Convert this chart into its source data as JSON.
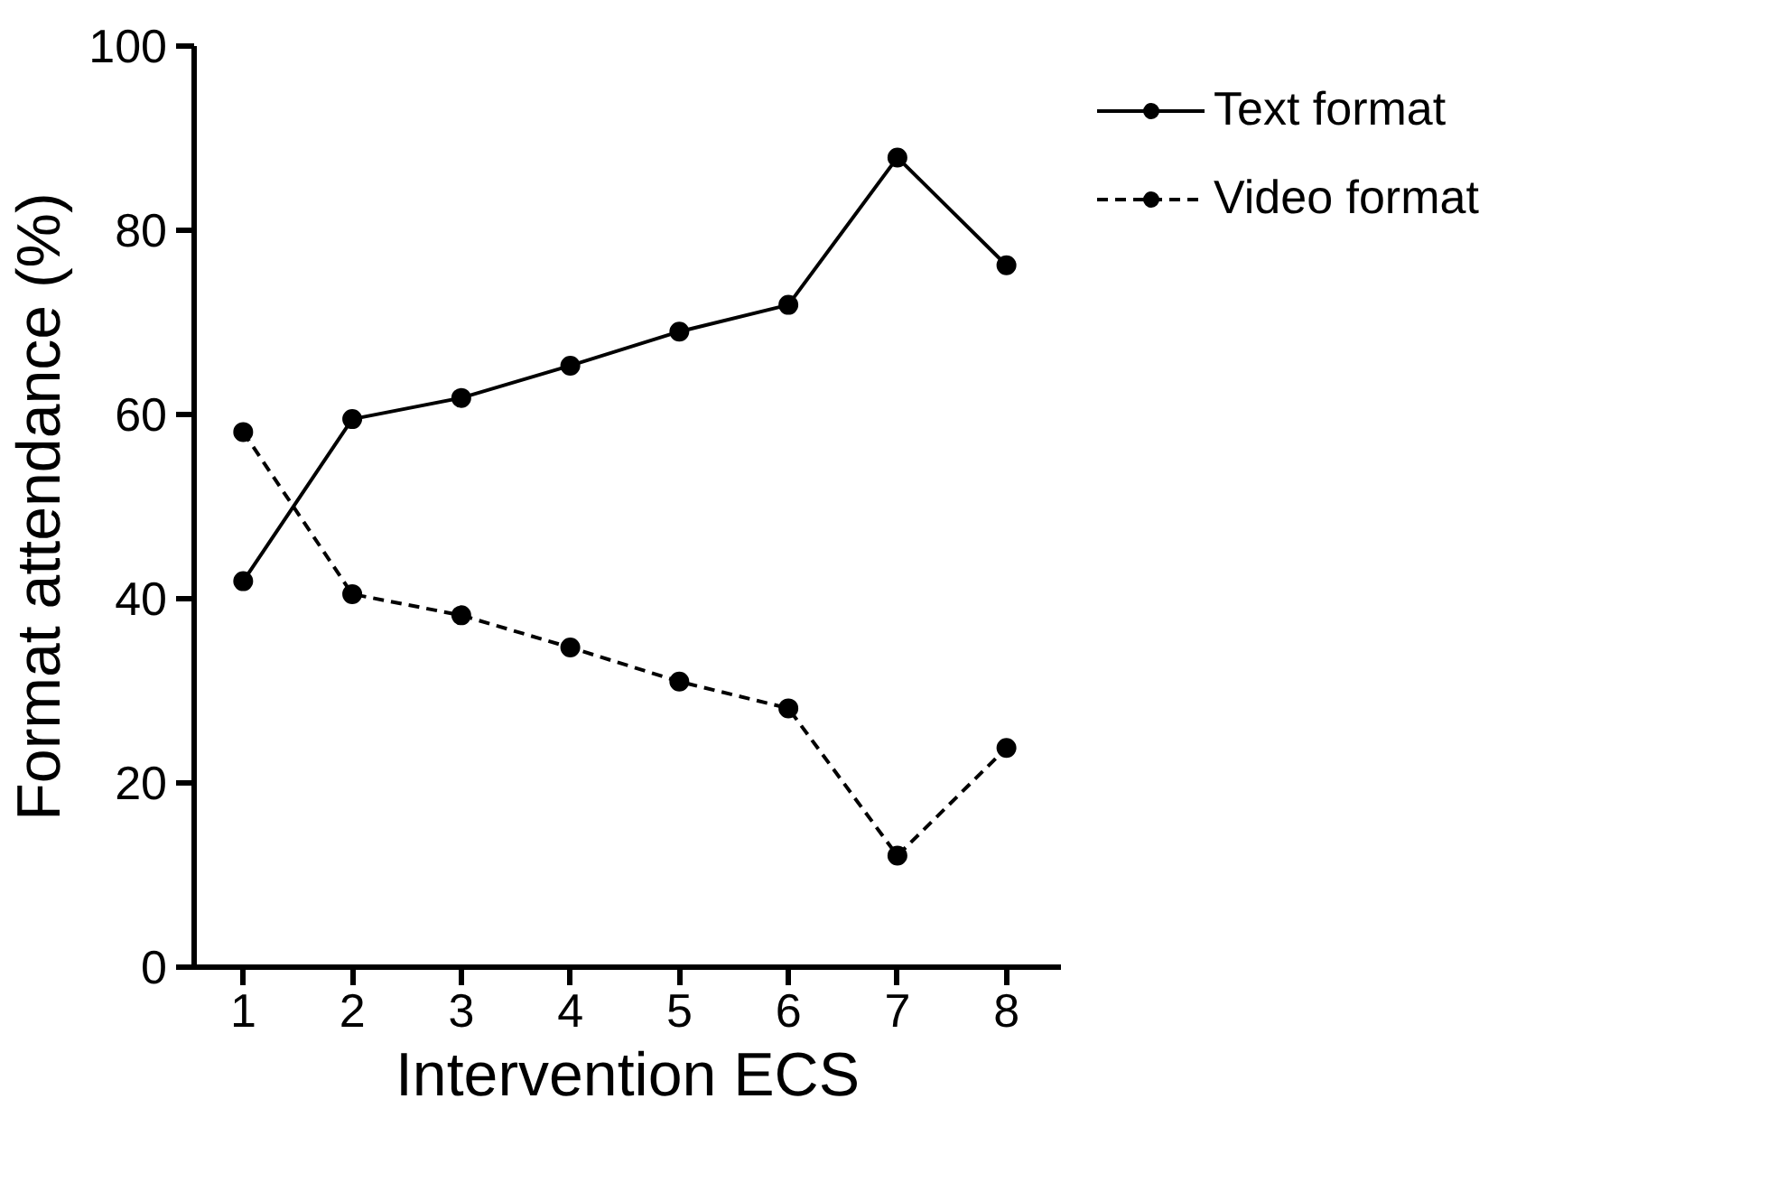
{
  "chart_data": {
    "type": "line",
    "xlabel": "Intervention ECS",
    "ylabel": "Format attendance (%)",
    "categories": [
      "1",
      "2",
      "3",
      "4",
      "5",
      "6",
      "7",
      "8"
    ],
    "series": [
      {
        "name": "Text format",
        "color": "#000000",
        "line_style": "solid",
        "values": [
          41.9,
          59.5,
          61.8,
          65.3,
          69.0,
          71.9,
          87.9,
          76.2
        ]
      },
      {
        "name": "Video format",
        "color": "#000000",
        "line_style": "dashed",
        "values": [
          58.1,
          40.5,
          38.2,
          34.7,
          31.0,
          28.1,
          12.1,
          23.8
        ]
      }
    ],
    "ylim": [
      0,
      100
    ],
    "yticks": [
      0,
      20,
      40,
      60,
      80,
      100
    ],
    "grid": false,
    "legend": "top right",
    "marker": "circle"
  }
}
